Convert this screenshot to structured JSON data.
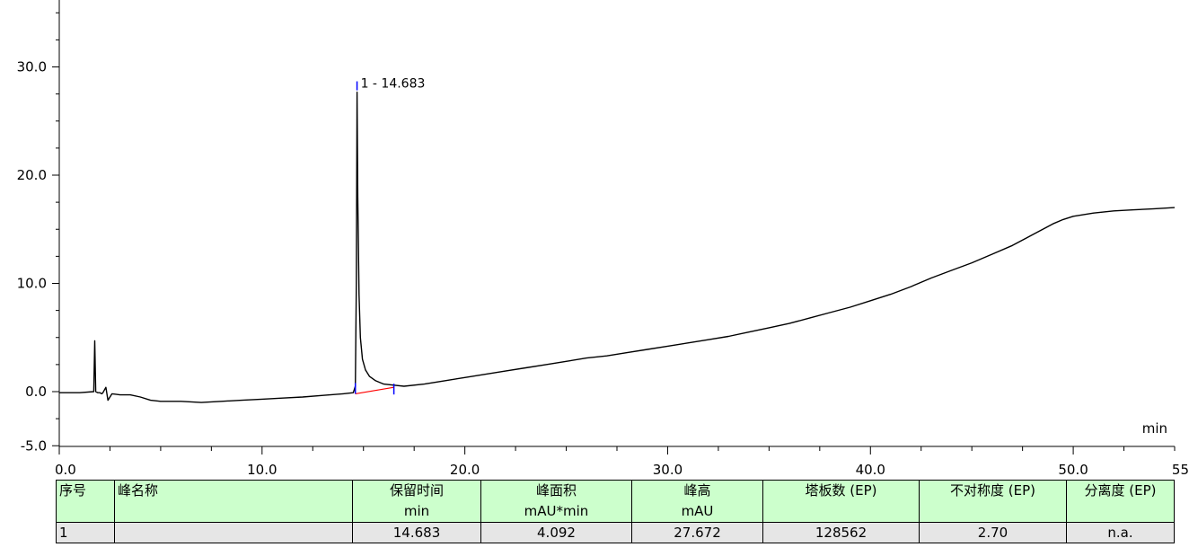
{
  "chart_data": {
    "type": "line",
    "title": "",
    "xlabel": "min",
    "ylabel": "",
    "xlim": [
      0.0,
      55.0
    ],
    "ylim": [
      -5.0,
      36.0
    ],
    "x_ticks": [
      "0.0",
      "10.0",
      "20.0",
      "30.0",
      "40.0",
      "50.0",
      "55"
    ],
    "y_ticks": [
      "-5.0",
      "0.0",
      "10.0",
      "20.0",
      "30.0"
    ],
    "y_tick_values": [
      -5.0,
      0.0,
      10.0,
      20.0,
      30.0
    ],
    "x_tick_values": [
      0.0,
      10.0,
      20.0,
      30.0,
      40.0,
      50.0,
      55.0
    ],
    "grid": false,
    "series": [
      {
        "color": "#000000",
        "x": [
          0.0,
          1.0,
          1.7,
          1.75,
          1.8,
          1.9,
          2.0,
          2.1,
          2.15,
          2.3,
          2.4,
          2.6,
          3.0,
          3.5,
          4.0,
          4.5,
          5.0,
          6.0,
          7.0,
          8.0,
          9.0,
          10.0,
          11.0,
          12.0,
          13.0,
          14.0,
          14.5,
          14.6,
          14.65,
          14.683,
          14.72,
          14.78,
          14.85,
          14.95,
          15.1,
          15.3,
          15.6,
          16.0,
          16.5,
          17.0,
          18.0,
          19.0,
          20.0,
          21.0,
          22.0,
          23.0,
          24.0,
          25.0,
          26.0,
          27.0,
          28.0,
          29.0,
          30.0,
          31.0,
          32.0,
          33.0,
          34.0,
          35.0,
          36.0,
          37.0,
          38.0,
          39.0,
          40.0,
          41.0,
          42.0,
          43.0,
          44.0,
          45.0,
          46.0,
          47.0,
          48.0,
          48.5,
          49.0,
          49.5,
          50.0,
          51.0,
          52.0,
          53.0,
          54.0,
          55.0
        ],
        "y": [
          -0.1,
          -0.1,
          0.0,
          4.7,
          0.0,
          -0.1,
          -0.1,
          -0.2,
          -0.1,
          0.4,
          -0.8,
          -0.2,
          -0.3,
          -0.3,
          -0.5,
          -0.8,
          -0.9,
          -0.9,
          -1.0,
          -0.9,
          -0.8,
          -0.7,
          -0.6,
          -0.5,
          -0.35,
          -0.2,
          -0.1,
          0.5,
          10.0,
          27.67,
          18.0,
          9.0,
          5.0,
          3.0,
          2.0,
          1.4,
          1.0,
          0.7,
          0.6,
          0.5,
          0.7,
          1.0,
          1.3,
          1.6,
          1.9,
          2.2,
          2.5,
          2.8,
          3.1,
          3.3,
          3.6,
          3.9,
          4.2,
          4.5,
          4.8,
          5.1,
          5.5,
          5.9,
          6.3,
          6.8,
          7.3,
          7.8,
          8.4,
          9.0,
          9.7,
          10.5,
          11.2,
          11.9,
          12.7,
          13.5,
          14.5,
          15.0,
          15.5,
          15.9,
          16.2,
          16.5,
          16.7,
          16.8,
          16.9,
          17.0
        ]
      }
    ],
    "peaks": [
      {
        "label": "1 - 14.683",
        "retention_time": 14.683,
        "height": 27.672,
        "baseline_start": [
          14.6,
          -0.2
        ],
        "baseline_end": [
          16.5,
          0.4
        ]
      }
    ],
    "baseline_color": "#ff0000",
    "marker_color": "#0000ff"
  },
  "table": {
    "headers": [
      "序号",
      "峰名称",
      "保留时间",
      "峰面积",
      "峰高",
      "塔板数 (EP)",
      "不对称度 (EP)",
      "分离度 (EP)"
    ],
    "units": [
      "",
      "",
      "min",
      "mAU*min",
      "mAU",
      "",
      "",
      ""
    ],
    "rows": [
      [
        "1",
        "",
        "14.683",
        "4.092",
        "27.672",
        "128562",
        "2.70",
        "n.a."
      ]
    ]
  }
}
